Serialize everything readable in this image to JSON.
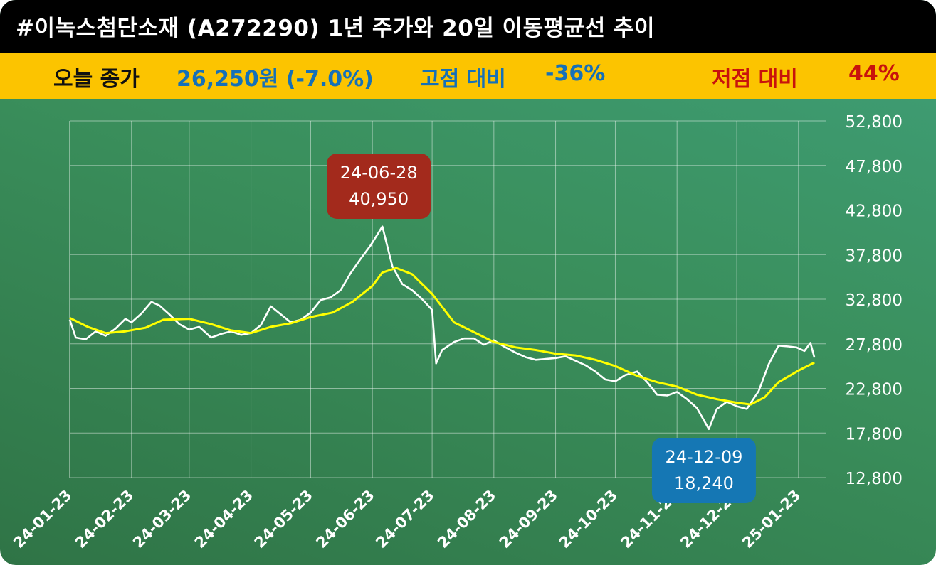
{
  "header": {
    "title": "#이녹스첨단소재 (A272290) 1년 주가와 20일 이동평균선 추이"
  },
  "summary": {
    "close_label": "오늘 종가",
    "close_value": "26,250원 (-7.0%)",
    "high_label": "고점 대비",
    "high_value": "-36%",
    "low_label": "저점 대비",
    "low_value": "44%"
  },
  "colors": {
    "price_line": "#ffffff",
    "ma_line": "#ffff00",
    "high_callout": "#a32a1c",
    "low_callout": "#1577b4",
    "info_bar": "#fcc400",
    "blue_text": "#1570b8",
    "red_text": "#c8120c"
  },
  "chart_data": {
    "type": "line",
    "x_labels": [
      "24-01-23",
      "24-02-23",
      "24-03-23",
      "24-04-23",
      "24-05-23",
      "24-06-23",
      "24-07-23",
      "24-08-23",
      "24-09-23",
      "24-10-23",
      "24-11-23",
      "24-12-23",
      "25-01-23"
    ],
    "y_ticks": [
      "52,800",
      "47,800",
      "42,800",
      "37,800",
      "32,800",
      "27,800",
      "22,800",
      "17,800",
      "12,800"
    ],
    "ylim": [
      12800,
      52800
    ],
    "grid": true,
    "series": [
      {
        "key": "price",
        "points": [
          [
            "24-01-23",
            30500
          ],
          [
            "24-01-26",
            28500
          ],
          [
            "24-01-31",
            28300
          ],
          [
            "24-02-05",
            29200
          ],
          [
            "24-02-10",
            28700
          ],
          [
            "24-02-15",
            29500
          ],
          [
            "24-02-20",
            30600
          ],
          [
            "24-02-23",
            30200
          ],
          [
            "24-02-28",
            31200
          ],
          [
            "24-03-04",
            32500
          ],
          [
            "24-03-08",
            32100
          ],
          [
            "24-03-13",
            31100
          ],
          [
            "24-03-18",
            30000
          ],
          [
            "24-03-23",
            29400
          ],
          [
            "24-03-28",
            29700
          ],
          [
            "24-04-03",
            28500
          ],
          [
            "24-04-08",
            28900
          ],
          [
            "24-04-13",
            29200
          ],
          [
            "24-04-18",
            28800
          ],
          [
            "24-04-23",
            29000
          ],
          [
            "24-04-28",
            29900
          ],
          [
            "24-05-03",
            32000
          ],
          [
            "24-05-08",
            31100
          ],
          [
            "24-05-13",
            30200
          ],
          [
            "24-05-18",
            30500
          ],
          [
            "24-05-23",
            31300
          ],
          [
            "24-05-28",
            32700
          ],
          [
            "24-06-02",
            33000
          ],
          [
            "24-06-07",
            33800
          ],
          [
            "24-06-12",
            35700
          ],
          [
            "24-06-17",
            37300
          ],
          [
            "24-06-22",
            38800
          ],
          [
            "24-06-28",
            40950
          ],
          [
            "24-07-03",
            36500
          ],
          [
            "24-07-08",
            34500
          ],
          [
            "24-07-13",
            33800
          ],
          [
            "24-07-18",
            32800
          ],
          [
            "24-07-23",
            31600
          ],
          [
            "24-07-25",
            25600
          ],
          [
            "24-07-28",
            27100
          ],
          [
            "24-08-03",
            28000
          ],
          [
            "24-08-08",
            28400
          ],
          [
            "24-08-13",
            28400
          ],
          [
            "24-08-18",
            27700
          ],
          [
            "24-08-23",
            28200
          ],
          [
            "24-08-28",
            27500
          ],
          [
            "24-09-03",
            26800
          ],
          [
            "24-09-08",
            26300
          ],
          [
            "24-09-13",
            26000
          ],
          [
            "24-09-18",
            26100
          ],
          [
            "24-09-23",
            26200
          ],
          [
            "24-09-28",
            26400
          ],
          [
            "24-10-03",
            25900
          ],
          [
            "24-10-08",
            25400
          ],
          [
            "24-10-13",
            24700
          ],
          [
            "24-10-18",
            23800
          ],
          [
            "24-10-23",
            23600
          ],
          [
            "24-10-28",
            24300
          ],
          [
            "24-11-03",
            24700
          ],
          [
            "24-11-08",
            23500
          ],
          [
            "24-11-13",
            22100
          ],
          [
            "24-11-18",
            22000
          ],
          [
            "24-11-23",
            22400
          ],
          [
            "24-11-28",
            21600
          ],
          [
            "24-12-03",
            20600
          ],
          [
            "24-12-09",
            18240
          ],
          [
            "24-12-13",
            20500
          ],
          [
            "24-12-18",
            21300
          ],
          [
            "24-12-23",
            20800
          ],
          [
            "24-12-28",
            20500
          ],
          [
            "25-01-03",
            22500
          ],
          [
            "25-01-08",
            25500
          ],
          [
            "25-01-13",
            27600
          ],
          [
            "25-01-18",
            27500
          ],
          [
            "25-01-22",
            27400
          ],
          [
            "25-01-26",
            27000
          ],
          [
            "25-01-29",
            27900
          ],
          [
            "25-01-31",
            26250
          ]
        ]
      },
      {
        "key": "ma20",
        "points": [
          [
            "24-01-23",
            30700
          ],
          [
            "24-02-01",
            29700
          ],
          [
            "24-02-10",
            29000
          ],
          [
            "24-02-20",
            29200
          ],
          [
            "24-03-01",
            29600
          ],
          [
            "24-03-10",
            30500
          ],
          [
            "24-03-23",
            30600
          ],
          [
            "24-04-03",
            30000
          ],
          [
            "24-04-13",
            29300
          ],
          [
            "24-04-23",
            29000
          ],
          [
            "24-05-03",
            29700
          ],
          [
            "24-05-13",
            30100
          ],
          [
            "24-05-23",
            30800
          ],
          [
            "24-06-03",
            31300
          ],
          [
            "24-06-13",
            32500
          ],
          [
            "24-06-23",
            34300
          ],
          [
            "24-06-28",
            35800
          ],
          [
            "24-07-05",
            36300
          ],
          [
            "24-07-13",
            35600
          ],
          [
            "24-07-23",
            33400
          ],
          [
            "24-08-03",
            30200
          ],
          [
            "24-08-13",
            29100
          ],
          [
            "24-08-23",
            28000
          ],
          [
            "24-09-03",
            27400
          ],
          [
            "24-09-13",
            27100
          ],
          [
            "24-09-23",
            26700
          ],
          [
            "24-10-03",
            26500
          ],
          [
            "24-10-13",
            26000
          ],
          [
            "24-10-23",
            25300
          ],
          [
            "24-11-03",
            24200
          ],
          [
            "24-11-13",
            23500
          ],
          [
            "24-11-23",
            23000
          ],
          [
            "24-12-03",
            22100
          ],
          [
            "24-12-13",
            21600
          ],
          [
            "24-12-23",
            21200
          ],
          [
            "24-12-30",
            21000
          ],
          [
            "25-01-06",
            21800
          ],
          [
            "25-01-13",
            23500
          ],
          [
            "25-01-23",
            24800
          ],
          [
            "25-01-31",
            25700
          ]
        ]
      }
    ],
    "annotations": [
      {
        "date": "24-06-28",
        "value_text": "40,950",
        "kind": "high"
      },
      {
        "date": "24-12-09",
        "value_text": "18,240",
        "kind": "low"
      }
    ]
  }
}
